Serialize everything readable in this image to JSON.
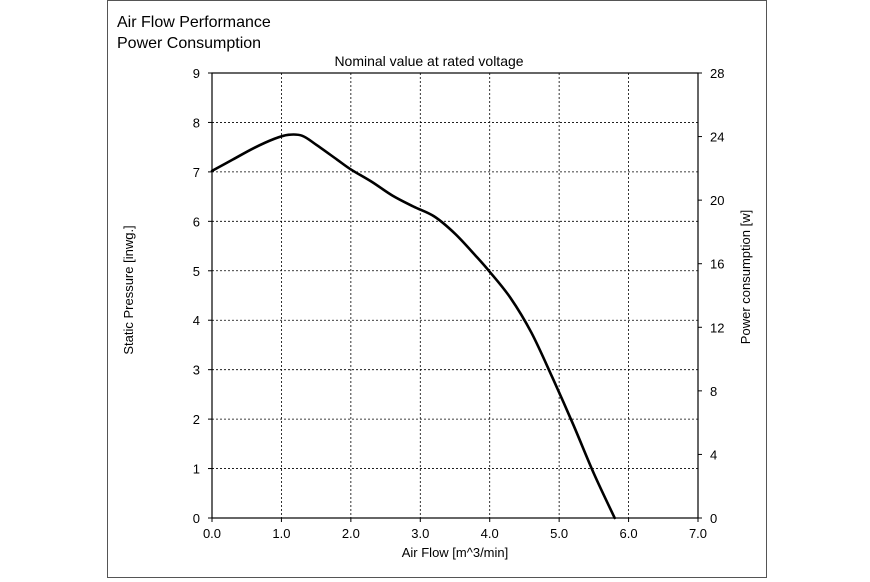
{
  "chart_data": {
    "type": "line",
    "title": [
      "Air Flow Performance",
      "Power Consumption"
    ],
    "subtitle": "Nominal value at rated voltage",
    "xlabel": "Air Flow [m^3/min]",
    "ylabel": "Static Pressure [inwg.]",
    "y2label": "Power consumption [w]",
    "xlim": [
      0,
      7
    ],
    "ylim": [
      0,
      9
    ],
    "y2lim": [
      0,
      28
    ],
    "xticks": [
      "0.0",
      "1.0",
      "2.0",
      "3.0",
      "4.0",
      "5.0",
      "6.0",
      "7.0"
    ],
    "yticks": [
      "0",
      "1",
      "2",
      "3",
      "4",
      "5",
      "6",
      "7",
      "8",
      "9"
    ],
    "y2ticks": [
      "0",
      "4",
      "8",
      "12",
      "16",
      "20",
      "24",
      "28"
    ],
    "grid": true,
    "series": [
      {
        "x": [
          0.0,
          0.3,
          0.6,
          0.9,
          1.1,
          1.3,
          1.5,
          1.8,
          2.0,
          2.3,
          2.6,
          2.9,
          3.2,
          3.5,
          3.8,
          4.0,
          4.3,
          4.6,
          4.9,
          5.2,
          5.5,
          5.8
        ],
        "y": [
          7.02,
          7.25,
          7.48,
          7.67,
          7.75,
          7.73,
          7.55,
          7.25,
          7.05,
          6.8,
          6.52,
          6.3,
          6.1,
          5.75,
          5.3,
          4.98,
          4.45,
          3.75,
          2.85,
          1.9,
          0.9,
          0.0
        ]
      }
    ]
  }
}
